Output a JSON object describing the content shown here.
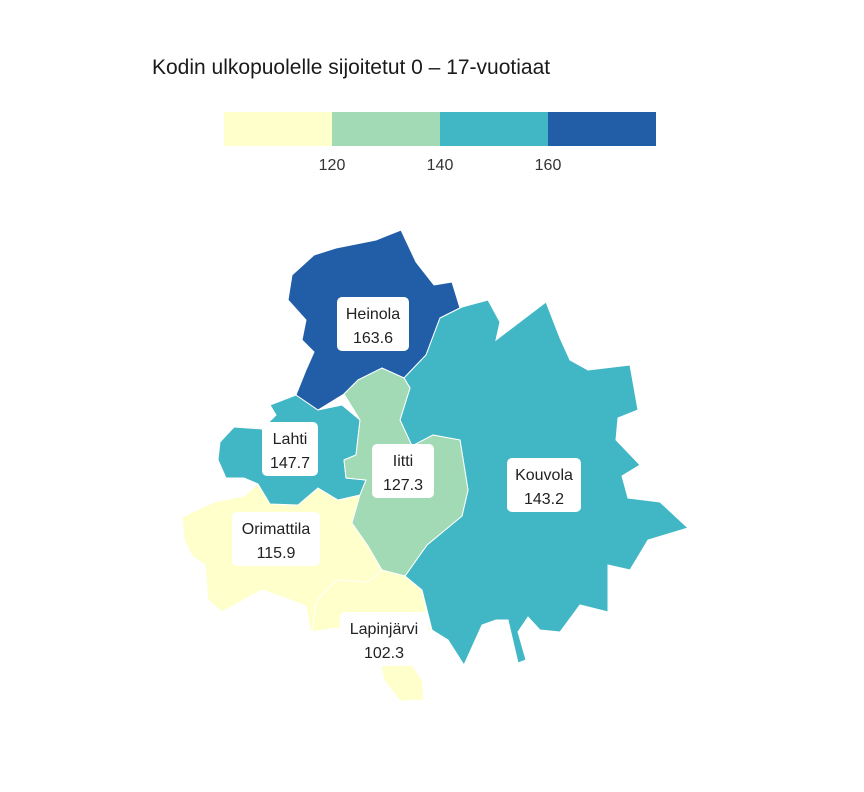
{
  "title": "Kodin ulkopuolelle sijoitetut 0 – 17-vuotiaat",
  "legend": {
    "colors": [
      "#ffffcc",
      "#a1dab4",
      "#41b6c4",
      "#225ea8"
    ],
    "ticks": [
      "120",
      "140",
      "160"
    ]
  },
  "regions": [
    {
      "key": "heinola",
      "name": "Heinola",
      "value": "163.6",
      "color": "#225ea8"
    },
    {
      "key": "kouvola",
      "name": "Kouvola",
      "value": "143.2",
      "color": "#41b6c4"
    },
    {
      "key": "lahti",
      "name": "Lahti",
      "value": "147.7",
      "color": "#41b6c4"
    },
    {
      "key": "iitti",
      "name": "Iitti",
      "value": "127.3",
      "color": "#a1dab4"
    },
    {
      "key": "orimattila",
      "name": "Orimattila",
      "value": "115.9",
      "color": "#ffffcc"
    },
    {
      "key": "lapinjarvi",
      "name": "Lapinjärvi",
      "value": "102.3",
      "color": "#ffffcc"
    }
  ]
}
